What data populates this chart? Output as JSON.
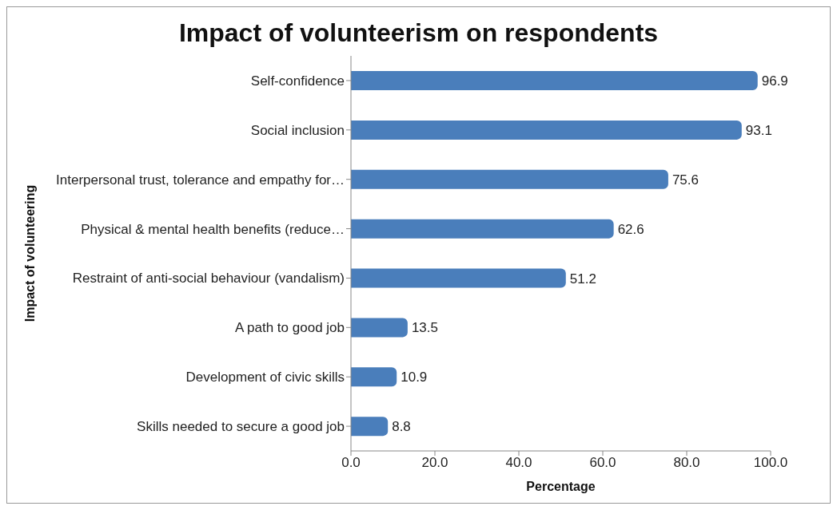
{
  "chart_data": {
    "type": "bar",
    "orientation": "horizontal",
    "title": "Impact of volunteerism on respondents",
    "xlabel": "Percentage",
    "ylabel": "Impact of volunteering",
    "categories": [
      "Self-confidence",
      "Social inclusion",
      "Interpersonal trust, tolerance and empathy for…",
      "Physical & mental health benefits (reduce…",
      "Restraint of anti-social behaviour (vandalism)",
      "A path to good job",
      "Development of civic skills",
      "Skills needed to secure a good job"
    ],
    "values": [
      96.9,
      93.1,
      75.6,
      62.6,
      51.2,
      13.5,
      10.9,
      8.8
    ],
    "color": "#4a7ebb",
    "xlim": [
      0,
      100
    ],
    "xticks": [
      {
        "value": 0,
        "label": "0.0"
      },
      {
        "value": 20,
        "label": "20.0"
      },
      {
        "value": 40,
        "label": "40.0"
      },
      {
        "value": 60,
        "label": "60.0"
      },
      {
        "value": 80,
        "label": "80.0"
      },
      {
        "value": 100,
        "label": "100.0"
      }
    ],
    "data_labels": true,
    "grid": false,
    "legend": false
  }
}
